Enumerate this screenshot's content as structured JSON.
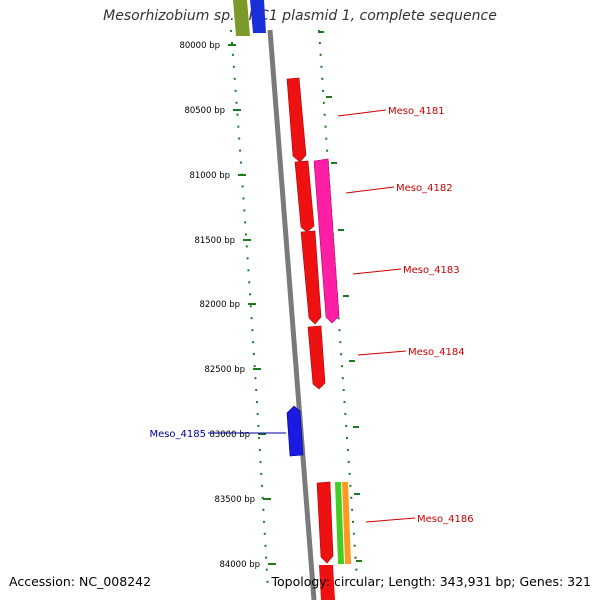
{
  "title": "Mesorhizobium sp. BNC1 plasmid 1, complete sequence",
  "footer": {
    "accession": "Accession: NC_008242",
    "summary": "Topology: circular; Length: 343,931 bp; Genes: 321"
  },
  "colors": {
    "backbone": "#7a7a7a",
    "tick": "#1e7a1e",
    "label_red": "#cc0000",
    "label_blue": "#000099"
  },
  "ticks": [
    {
      "label": "80000 bp"
    },
    {
      "label": "80500 bp"
    },
    {
      "label": "81000 bp"
    },
    {
      "label": "81500 bp"
    },
    {
      "label": "82000 bp"
    },
    {
      "label": "82500 bp"
    },
    {
      "label": "83000 bp"
    },
    {
      "label": "83500 bp"
    },
    {
      "label": "84000 bp"
    }
  ],
  "genes": [
    {
      "name": "Meso_4181",
      "strand": "forward",
      "color": "red"
    },
    {
      "name": "Meso_4182",
      "strand": "forward",
      "color": "magenta"
    },
    {
      "name": "Meso_4183",
      "strand": "forward",
      "color": "red"
    },
    {
      "name": "Meso_4184",
      "strand": "forward",
      "color": "red"
    },
    {
      "name": "Meso_4185",
      "strand": "reverse",
      "color": "blue"
    },
    {
      "name": "Meso_4186",
      "strand": "forward",
      "color": "red"
    }
  ]
}
